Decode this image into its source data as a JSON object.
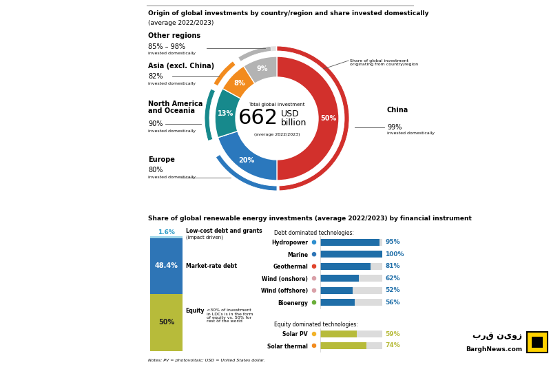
{
  "chart_data": [
    {
      "type": "pie",
      "title": "Origin of global investments by country/region and share invested domestically",
      "subtitle": "(average 2022/2023)",
      "categories": [
        "China",
        "Europe",
        "North America\nand Oceania",
        "Asia (excl. China)",
        "Other regions"
      ],
      "values": [
        50,
        20,
        13,
        8,
        9
      ],
      "value_labels": [
        "50%",
        "20%",
        "13%",
        "8%",
        "9%"
      ],
      "data_labels": true,
      "colors": [
        "#d2302c",
        "#2b78bd",
        "#17898c",
        "#f28b1e",
        "#b3b3b3"
      ],
      "domestic_values": [
        99,
        80,
        90,
        82,
        [
          85,
          98
        ]
      ],
      "domestic_labels": [
        "99%",
        "80%",
        "90%",
        "82%",
        "85% – 98%"
      ],
      "domestic_caption": "invested domestically",
      "center": {
        "caption": "Total global investment",
        "total": 662,
        "unit": "USD\nbillion",
        "period": "(average 2022/2023)"
      },
      "annotations": [
        "Share of global investment\noriginating from country/region"
      ]
    },
    {
      "type": "bar",
      "stacked": true,
      "title": "Share of global renewable energy investments (average 2022/2023) by financial instrument",
      "categories": [
        null
      ],
      "series": [
        {
          "name": "Equity",
          "color": "#b7bb3a",
          "values": [
            50
          ],
          "value_labels": [
            "50%"
          ],
          "note": "<30% of investment\nin LDCs is in the form\nof equity vs. 50% for\nrest of the world"
        },
        {
          "name": "Market-rate debt",
          "color": "#2e75b6",
          "values": [
            48.4
          ],
          "value_labels": [
            "48.4%"
          ]
        },
        {
          "name": "Low-cost debt and grants",
          "color": "#9fd6ea",
          "values": [
            1.6
          ],
          "value_labels": [
            "1.6%"
          ],
          "subtitle": "(impact driven)"
        }
      ],
      "ylim": [
        0,
        100
      ],
      "yticks": [],
      "tick_labels": false,
      "data_labels": true
    },
    {
      "type": "bar",
      "orientation": "horizontal",
      "title": "Debt dominated technologies:",
      "categories": [
        "Hydropower",
        "Marine",
        "Geothermal",
        "Wind (onshore)",
        "Wind (offshore)",
        "Bioenergy"
      ],
      "values": [
        95,
        100,
        81,
        62,
        52,
        56
      ],
      "value_labels": [
        "95%",
        "100%",
        "81%",
        "62%",
        "52%",
        "56%"
      ],
      "color": "#1f6ea8",
      "xlim": [
        0,
        100
      ],
      "xticks": [],
      "tick_labels": "y",
      "data_labels": true
    },
    {
      "type": "bar",
      "orientation": "horizontal",
      "title": "Equity dominated technologies:",
      "categories": [
        "Solar PV",
        "Solar thermal"
      ],
      "values": [
        59,
        74
      ],
      "value_labels": [
        "59%",
        "74%"
      ],
      "color": "#b7bb3a",
      "xlim": [
        0,
        100
      ],
      "xticks": [],
      "tick_labels": "y",
      "data_labels": true
    }
  ],
  "notes": "Notes: PV = photovoltaic; USD = United States dollar.",
  "watermark": {
    "name": "برق نیوز",
    "url": "BarghNews.com"
  }
}
